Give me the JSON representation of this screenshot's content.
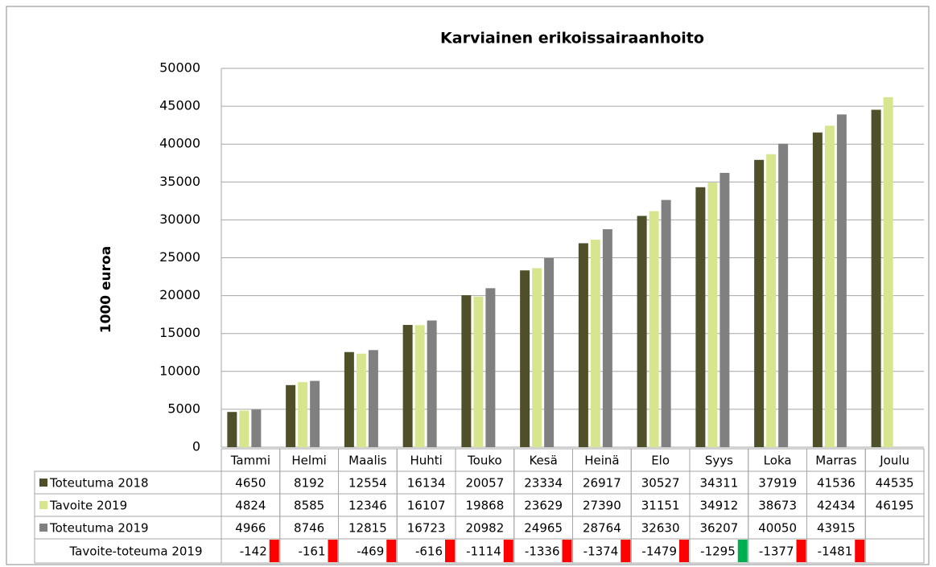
{
  "chart_data": {
    "type": "bar",
    "title": "Karviainen erikoissairaanhoito",
    "y_label": "1000 euroa",
    "categories": [
      "Tammi",
      "Helmi",
      "Maalis",
      "Huhti",
      "Touko",
      "Kesä",
      "Heinä",
      "Elo",
      "Syys",
      "Loka",
      "Marras",
      "Joulu"
    ],
    "series": [
      {
        "name": "Toteutuma 2018",
        "color": "#4f4f2a",
        "values": [
          4650,
          8192,
          12554,
          16134,
          20057,
          23334,
          26917,
          30527,
          34311,
          37919,
          41536,
          44535
        ]
      },
      {
        "name": "Tavoite 2019",
        "color": "#d7e58e",
        "values": [
          4824,
          8585,
          12346,
          16107,
          19868,
          23629,
          27390,
          31151,
          34912,
          38673,
          42434,
          46195
        ]
      },
      {
        "name": "Toteutuma 2019",
        "color": "#808080",
        "values": [
          4966,
          8746,
          12815,
          16723,
          20982,
          24965,
          28764,
          32630,
          36207,
          40050,
          43915,
          null
        ]
      }
    ],
    "ylim": [
      0,
      50000
    ],
    "yticks": [
      0,
      5000,
      10000,
      15000,
      20000,
      25000,
      30000,
      35000,
      40000,
      45000,
      50000
    ],
    "grid": true,
    "data_table": true,
    "differences": {
      "name": "Tavoite-toteuma 2019",
      "values": [
        -142,
        -161,
        -469,
        -616,
        -1114,
        -1336,
        -1374,
        -1479,
        -1295,
        -1377,
        -1481,
        null
      ],
      "colors": [
        "#ff0000",
        "#ff0000",
        "#ff0000",
        "#ff0000",
        "#ff0000",
        "#ff0000",
        "#ff0000",
        "#ff0000",
        "#00b050",
        "#ff0000",
        "#ff0000",
        null
      ]
    }
  }
}
